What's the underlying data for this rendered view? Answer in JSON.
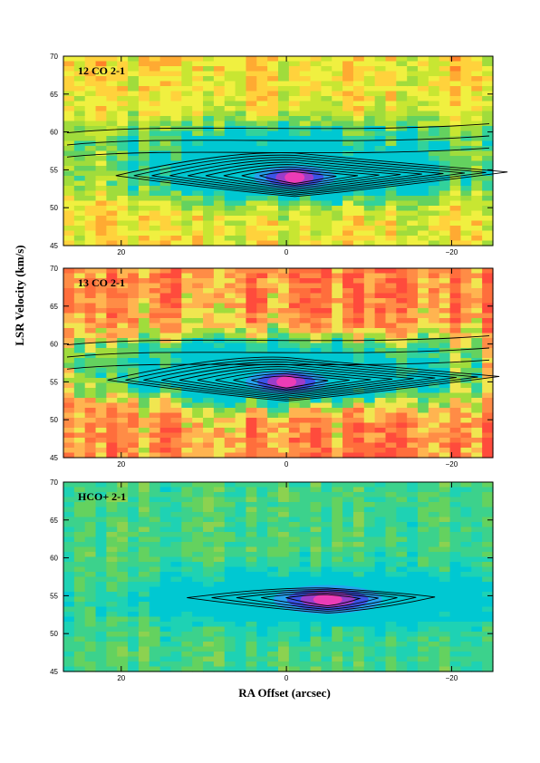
{
  "chart_data": [
    {
      "type": "heatmap",
      "panel_label": "12 CO 2-1",
      "colormap": [
        "#00c8d2",
        "#32d29b",
        "#64d25f",
        "#a0dc3c",
        "#c8e632",
        "#f0f040",
        "#ffd23c",
        "#ffaa32",
        "#ff8228"
      ],
      "background_level": 0.62,
      "xlim": [
        27,
        -25
      ],
      "ylim": [
        45,
        70
      ],
      "xticks": [
        20,
        0,
        -20
      ],
      "yticks": [
        45,
        50,
        55,
        60,
        65,
        70
      ],
      "peak": {
        "x": -1,
        "y": 54,
        "level": 1.0
      },
      "peak_colors": [
        "#28a0f0",
        "#3c50e6",
        "#a03cc8",
        "#f03cb4"
      ],
      "grid": false
    },
    {
      "type": "heatmap",
      "panel_label": "13 CO 2-1",
      "colormap": [
        "#00c8d2",
        "#32d29b",
        "#64d25f",
        "#a0dc3c",
        "#f0e650",
        "#ffb450",
        "#ff8c46",
        "#ff6e3c",
        "#ff4b3c"
      ],
      "background_level": 0.72,
      "xlim": [
        27,
        -25
      ],
      "ylim": [
        45,
        70
      ],
      "xticks": [
        20,
        0,
        -20
      ],
      "yticks": [
        45,
        50,
        55,
        60,
        65,
        70
      ],
      "peak": {
        "x": 0,
        "y": 55,
        "level": 1.0
      },
      "peak_colors": [
        "#28a0f0",
        "#3c50e6",
        "#a03cc8",
        "#f03cb4"
      ],
      "grid": false
    },
    {
      "type": "heatmap",
      "panel_label": "HCO+ 2-1",
      "colormap": [
        "#00c8d2",
        "#1ed2b4",
        "#3cd28c",
        "#64d25f",
        "#8cd250",
        "#b4dc46"
      ],
      "background_level": 0.45,
      "xlim": [
        27,
        -25
      ],
      "ylim": [
        45,
        70
      ],
      "xticks": [
        20,
        0,
        -20
      ],
      "yticks": [
        45,
        50,
        55,
        60,
        65,
        70
      ],
      "peak": {
        "x": -5,
        "y": 54.5,
        "level": 1.0
      },
      "peak_colors": [
        "#28a0f0",
        "#3c50e6",
        "#a03cc8",
        "#f03cb4"
      ],
      "grid": false
    }
  ],
  "axes": {
    "ylabel": "LSR Velocity (km/s)",
    "xlabel": "RA Offset (arcsec)"
  }
}
